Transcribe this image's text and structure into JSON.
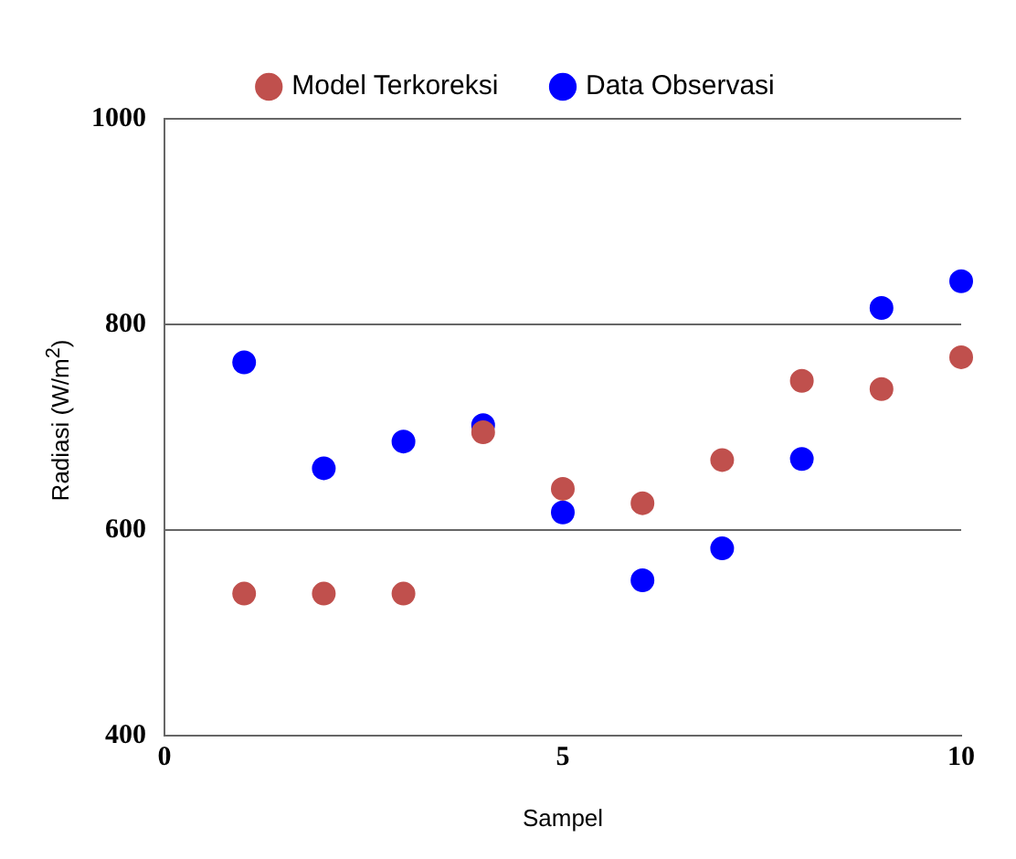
{
  "chart_data": {
    "type": "scatter",
    "xlabel": "Sampel",
    "ylabel": "Radiasi (W/m$^{2}$)",
    "x": [
      1,
      2,
      3,
      4,
      5,
      6,
      7,
      8,
      9,
      10
    ],
    "series": [
      {
        "name": "Model Terkoreksi",
        "color": "#c0504d",
        "values": [
          538,
          538,
          538,
          695,
          640,
          626,
          668,
          745,
          737,
          768
        ]
      },
      {
        "name": "Data Observasi",
        "color": "#0000ff",
        "values": [
          763,
          660,
          686,
          702,
          617,
          551,
          582,
          669,
          816,
          842
        ]
      }
    ],
    "xlim": [
      0,
      10
    ],
    "xticks": [
      0,
      5,
      10
    ],
    "ylim": [
      400,
      1000
    ],
    "yticks": [
      400,
      600,
      800,
      1000
    ],
    "grid": "y",
    "legend": "top",
    "marker": "circle"
  }
}
